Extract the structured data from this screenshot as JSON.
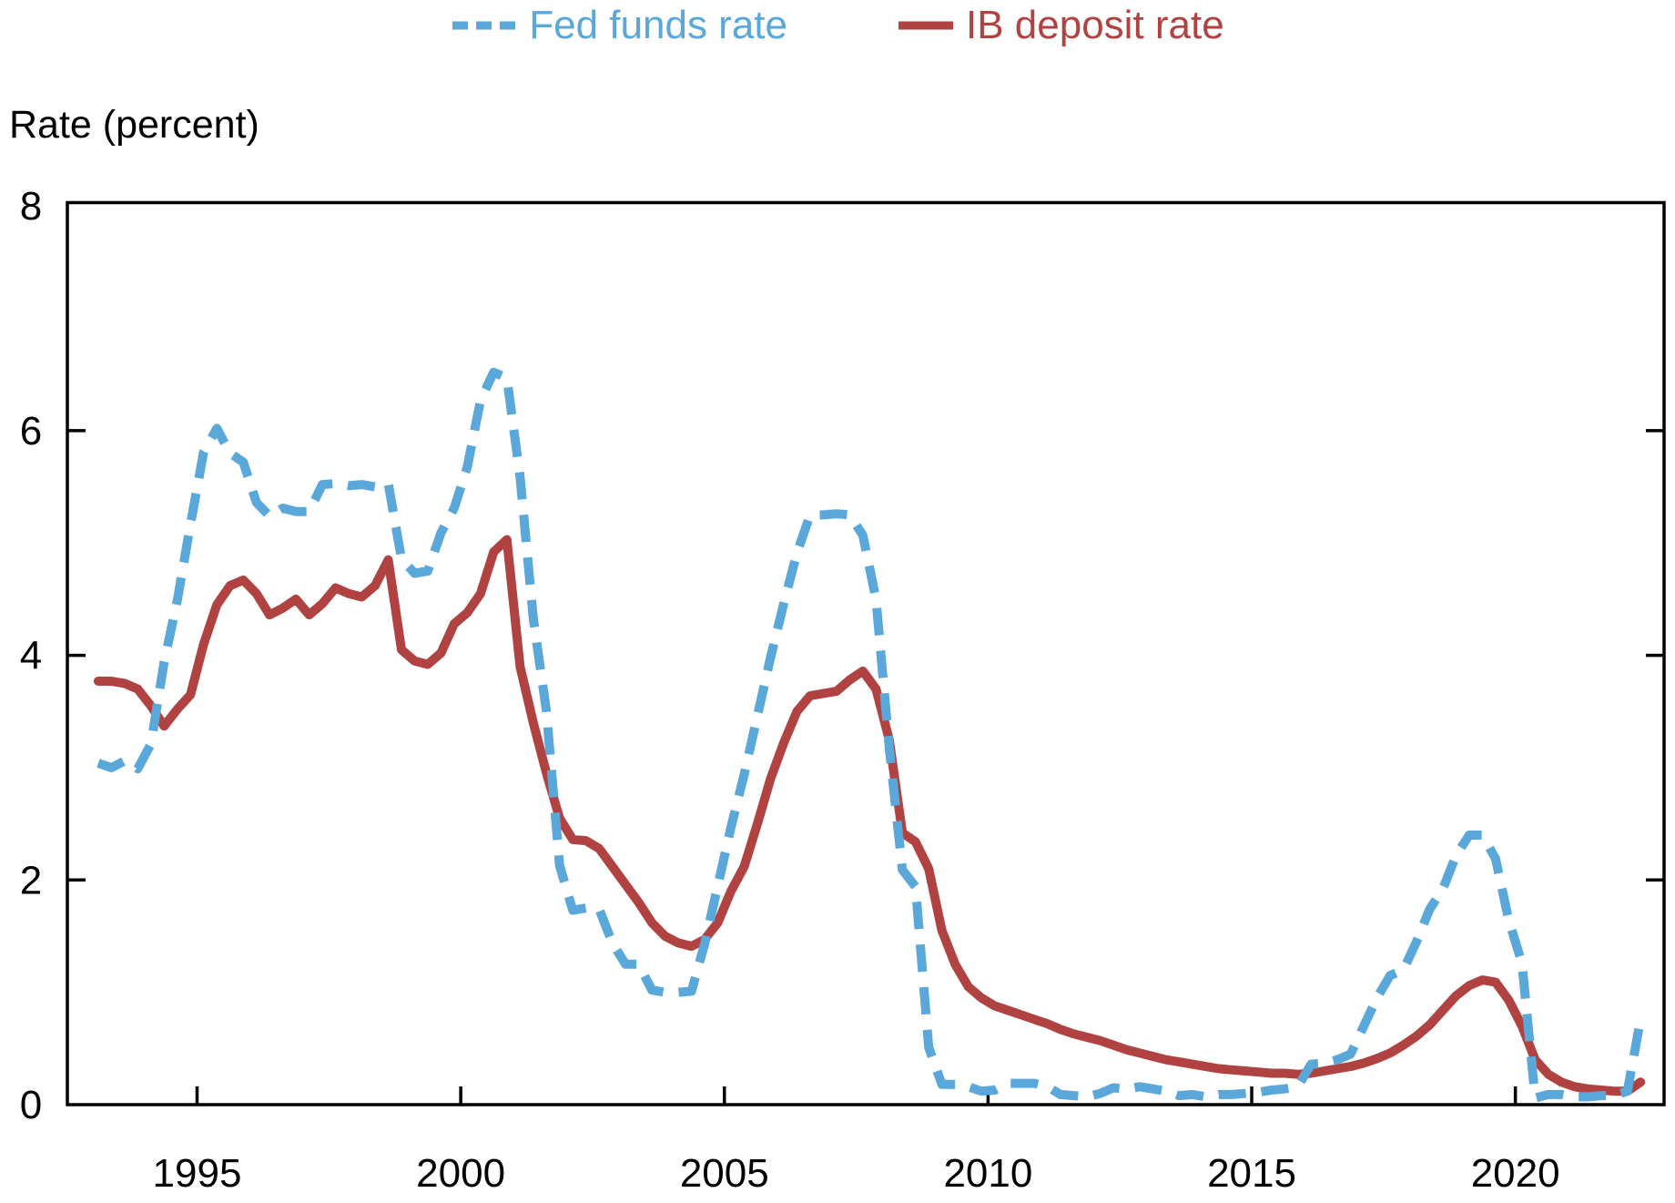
{
  "figure": {
    "title": "Rate (percent)"
  },
  "chart_data": {
    "type": "line",
    "title": "Rate (percent)",
    "legend_position": "top-center",
    "grid": false,
    "x_axis": {
      "label": "",
      "ticks": [
        1995,
        2000,
        2005,
        2010,
        2015,
        2020
      ],
      "range": [
        1992.54,
        2022.82
      ]
    },
    "y_axis": {
      "label": "Rate (percent)",
      "ticks": [
        0,
        2,
        4,
        6,
        8
      ],
      "range": [
        0,
        8.03
      ]
    },
    "colors": {
      "fed_funds": "#5aa7da",
      "ib_deposit": "#b04341",
      "axis": "#000000"
    },
    "x_start": 1993.125,
    "x_step": 0.25,
    "series": [
      {
        "name": "IB deposit rate",
        "style": "solid",
        "color_key": "ib_deposit",
        "values": [
          3.77,
          3.77,
          3.75,
          3.7,
          3.55,
          3.37,
          3.52,
          3.65,
          4.1,
          4.45,
          4.62,
          4.67,
          4.55,
          4.36,
          4.42,
          4.5,
          4.36,
          4.46,
          4.6,
          4.55,
          4.52,
          4.62,
          4.85,
          4.05,
          3.95,
          3.92,
          4.02,
          4.28,
          4.38,
          4.55,
          4.92,
          5.03,
          3.9,
          3.4,
          2.95,
          2.55,
          2.36,
          2.35,
          2.28,
          2.12,
          1.96,
          1.8,
          1.62,
          1.5,
          1.44,
          1.41,
          1.47,
          1.62,
          1.9,
          2.12,
          2.5,
          2.9,
          3.22,
          3.5,
          3.64,
          3.66,
          3.68,
          3.78,
          3.86,
          3.7,
          3.25,
          2.42,
          2.34,
          2.1,
          1.55,
          1.25,
          1.05,
          0.95,
          0.88,
          0.84,
          0.8,
          0.76,
          0.72,
          0.67,
          0.63,
          0.6,
          0.57,
          0.53,
          0.49,
          0.46,
          0.43,
          0.4,
          0.38,
          0.36,
          0.34,
          0.32,
          0.31,
          0.3,
          0.29,
          0.28,
          0.28,
          0.27,
          0.28,
          0.3,
          0.32,
          0.34,
          0.37,
          0.41,
          0.46,
          0.53,
          0.61,
          0.71,
          0.84,
          0.97,
          1.06,
          1.11,
          1.09,
          0.93,
          0.7,
          0.4,
          0.27,
          0.2,
          0.16,
          0.14,
          0.13,
          0.12,
          0.12,
          0.2
        ]
      },
      {
        "name": "Fed funds rate",
        "style": "dashed",
        "color_key": "fed_funds",
        "values": [
          3.04,
          3.0,
          3.06,
          2.99,
          3.21,
          3.94,
          4.49,
          5.17,
          5.81,
          6.02,
          5.8,
          5.72,
          5.36,
          5.24,
          5.31,
          5.28,
          5.28,
          5.52,
          5.53,
          5.51,
          5.52,
          5.5,
          5.53,
          4.86,
          4.73,
          4.75,
          5.09,
          5.31,
          5.68,
          6.27,
          6.52,
          6.47,
          5.59,
          4.33,
          3.5,
          2.13,
          1.73,
          1.75,
          1.74,
          1.44,
          1.25,
          1.25,
          1.02,
          1.0,
          1.0,
          1.01,
          1.43,
          1.95,
          2.47,
          2.94,
          3.46,
          3.98,
          4.46,
          4.91,
          5.25,
          5.25,
          5.26,
          5.25,
          5.07,
          4.5,
          3.18,
          2.09,
          1.94,
          0.51,
          0.18,
          0.18,
          0.16,
          0.12,
          0.13,
          0.19,
          0.19,
          0.19,
          0.16,
          0.09,
          0.08,
          0.07,
          0.1,
          0.15,
          0.14,
          0.16,
          0.14,
          0.12,
          0.08,
          0.09,
          0.07,
          0.09,
          0.09,
          0.1,
          0.11,
          0.13,
          0.14,
          0.16,
          0.36,
          0.37,
          0.4,
          0.45,
          0.7,
          0.95,
          1.15,
          1.2,
          1.45,
          1.74,
          1.92,
          2.22,
          2.4,
          2.4,
          2.19,
          1.64,
          1.26,
          0.06,
          0.09,
          0.09,
          0.07,
          0.07,
          0.08,
          0.08,
          0.12,
          0.76
        ]
      }
    ]
  },
  "legend": {
    "fed_funds_label": "Fed funds rate",
    "ib_deposit_label": "IB deposit rate"
  }
}
